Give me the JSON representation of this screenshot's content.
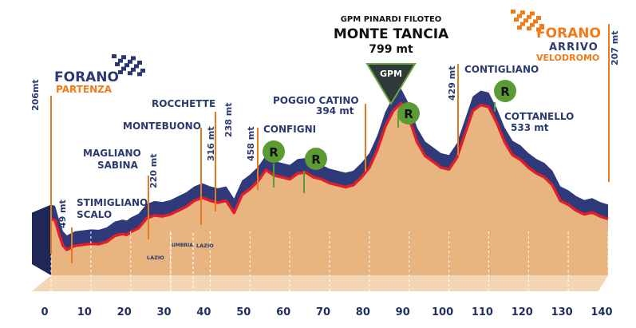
{
  "colors": {
    "wall": "#2f3a7a",
    "wall_dark": "#1f2758",
    "face": "#e8b47f",
    "ridge": "#e11d2a",
    "marker": "#e67a22",
    "green": "#5a9c33",
    "navy": "#2b3a6e",
    "orange": "#f07b1a"
  },
  "start": {
    "brand": "FORANO",
    "sub": "PARTENZA",
    "alt": "206mt",
    "icon": "checkered-flag-icon"
  },
  "finish": {
    "brand": "FORANO",
    "line1": "ARRIVO",
    "line2": "VELODROMO",
    "alt": "207 mt",
    "icon": "checkered-flag-icon"
  },
  "gpm": {
    "title": "GPM PINARDI FILOTEO",
    "name": "MONTE TANCIA",
    "alt": "799 mt",
    "badge": "GPM"
  },
  "places": [
    {
      "id": "stimigliano",
      "line1": "STIMIGLIANO",
      "line2": "SCALO",
      "alt": "49 mt"
    },
    {
      "id": "magliano",
      "line1": "MAGLIANO",
      "line2": "SABINA",
      "alt": "220 mt"
    },
    {
      "id": "montebuono",
      "line1": "MONTEBUONO",
      "alt": "316 mt"
    },
    {
      "id": "rocchette",
      "line1": "ROCCHETTE",
      "alt": "238 mt"
    },
    {
      "id": "configni",
      "line1": "CONFIGNI",
      "alt": "458 mt"
    },
    {
      "id": "poggio",
      "line1": "POGGIO CATINO",
      "alt": "394 mt"
    },
    {
      "id": "contigliano",
      "line1": "CONTIGLIANO",
      "alt": "429 mt"
    },
    {
      "id": "cottanello",
      "line1": "COTTANELLO",
      "alt": "533 mt"
    }
  ],
  "sprint_badge": "R",
  "regions": [
    "LAZIO",
    "UMBRIA",
    "LAZIO"
  ],
  "chart_data": {
    "type": "area",
    "xlabel": "",
    "ylabel": "",
    "x_ticks": [
      0,
      10,
      20,
      30,
      40,
      50,
      60,
      70,
      80,
      90,
      100,
      110,
      120,
      130,
      140
    ],
    "xlim": [
      0,
      140
    ],
    "x": [
      0,
      1,
      2,
      3,
      4,
      5,
      6,
      8,
      10,
      12,
      14,
      16,
      18,
      19,
      20,
      22,
      24,
      26,
      28,
      30,
      32,
      34,
      36,
      38,
      40,
      42,
      44,
      46,
      48,
      50,
      52,
      54,
      56,
      58,
      60,
      62,
      64,
      66,
      68,
      70,
      72,
      74,
      76,
      78,
      80,
      82,
      84,
      86,
      88,
      90,
      92,
      94,
      96,
      98,
      100,
      102,
      104,
      106,
      108,
      110,
      112,
      114,
      116,
      118,
      120,
      122,
      124,
      126,
      128,
      130,
      132,
      134,
      136,
      138,
      140
    ],
    "y": [
      206,
      200,
      130,
      70,
      49,
      60,
      70,
      75,
      80,
      78,
      90,
      120,
      130,
      125,
      140,
      160,
      210,
      225,
      220,
      230,
      250,
      270,
      300,
      316,
      300,
      290,
      300,
      238,
      330,
      360,
      400,
      458,
      430,
      420,
      410,
      440,
      445,
      420,
      410,
      390,
      380,
      370,
      380,
      420,
      470,
      560,
      680,
      760,
      799,
      720,
      600,
      530,
      500,
      470,
      460,
      520,
      640,
      760,
      790,
      780,
      700,
      600,
      533,
      510,
      470,
      440,
      420,
      380,
      300,
      280,
      250,
      230,
      240,
      220,
      207
    ],
    "ylim": [
      0,
      850
    ]
  }
}
